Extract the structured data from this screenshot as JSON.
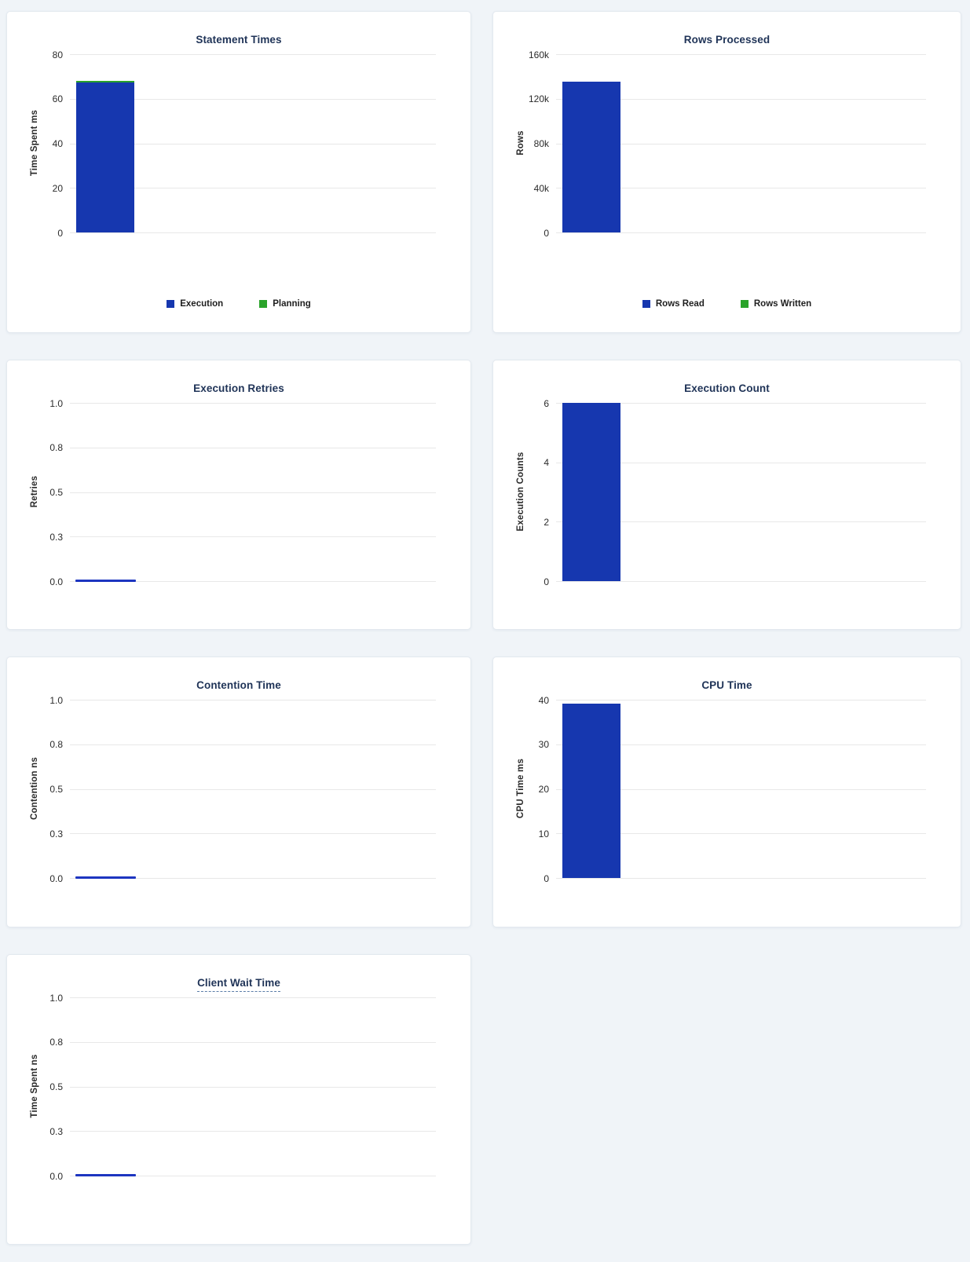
{
  "palette": {
    "bar_blue": "#1637af",
    "bar_green": "#2aa32a",
    "title_color": "#1f3357",
    "page_background": "#f0f4f8"
  },
  "chart_data": [
    {
      "type": "bar",
      "title": "Statement Times",
      "ylabel": "Time Spent ms",
      "ylim": [
        0,
        80
      ],
      "ytick_labels": [
        "0",
        "20",
        "40",
        "60",
        "80"
      ],
      "stacked": true,
      "grid": true,
      "legend_position": "bottom",
      "series": [
        {
          "name": "Execution",
          "color": "#1637af",
          "value": 67.4
        },
        {
          "name": "Planning",
          "color": "#2aa32a",
          "value": 0.6
        }
      ]
    },
    {
      "type": "bar",
      "title": "Rows Processed",
      "ylabel": "Rows",
      "ylim": [
        0,
        160000
      ],
      "ytick_labels": [
        "0",
        "40k",
        "80k",
        "120k",
        "160k"
      ],
      "stacked": true,
      "grid": true,
      "legend_position": "bottom",
      "series": [
        {
          "name": "Rows Read",
          "color": "#1637af",
          "value": 135000
        },
        {
          "name": "Rows Written",
          "color": "#2aa32a",
          "value": 0
        }
      ]
    },
    {
      "type": "bar",
      "title": "Execution Retries",
      "ylabel": "Retries",
      "ylim": [
        0,
        1
      ],
      "ytick_labels": [
        "0.0",
        "0.3",
        "0.5",
        "0.8",
        "1.0"
      ],
      "grid": true,
      "legend_position": "none",
      "series": [
        {
          "name": "Retries",
          "color": "#1d35c0",
          "value": 0
        }
      ]
    },
    {
      "type": "bar",
      "title": "Execution Count",
      "ylabel": "Execution Counts",
      "ylim": [
        0,
        6
      ],
      "ytick_labels": [
        "0",
        "2",
        "4",
        "6"
      ],
      "grid": true,
      "legend_position": "none",
      "series": [
        {
          "name": "Execution Count",
          "color": "#1637af",
          "value": 6
        }
      ]
    },
    {
      "type": "bar",
      "title": "Contention Time",
      "ylabel": "Contention ns",
      "ylim": [
        0,
        1
      ],
      "ytick_labels": [
        "0.0",
        "0.3",
        "0.5",
        "0.8",
        "1.0"
      ],
      "grid": true,
      "legend_position": "none",
      "series": [
        {
          "name": "Contention",
          "color": "#1d35c0",
          "value": 0
        }
      ]
    },
    {
      "type": "bar",
      "title": "CPU Time",
      "ylabel": "CPU Time ms",
      "ylim": [
        0,
        40
      ],
      "ytick_labels": [
        "0",
        "10",
        "20",
        "30",
        "40"
      ],
      "grid": true,
      "legend_position": "none",
      "series": [
        {
          "name": "CPU Time",
          "color": "#1637af",
          "value": 39.2
        }
      ]
    },
    {
      "type": "bar",
      "title": "Client Wait Time",
      "title_has_tooltip": true,
      "ylabel": "Time Spent ns",
      "ylim": [
        0,
        1
      ],
      "ytick_labels": [
        "0.0",
        "0.3",
        "0.5",
        "0.8",
        "1.0"
      ],
      "grid": true,
      "legend_position": "none",
      "series": [
        {
          "name": "Client Wait",
          "color": "#1d35c0",
          "value": 0
        }
      ]
    }
  ]
}
